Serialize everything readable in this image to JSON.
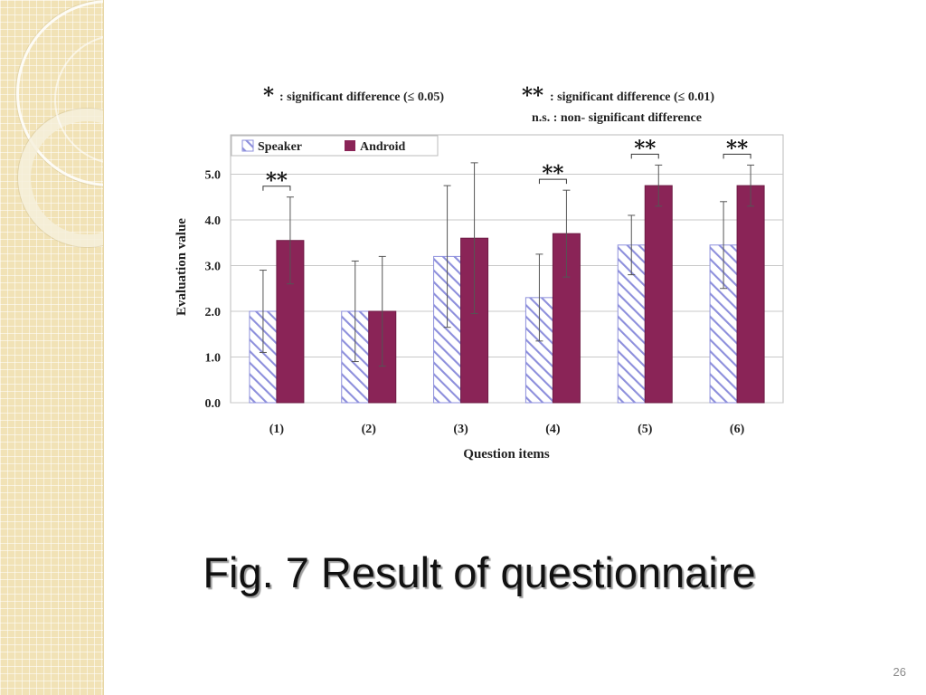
{
  "slide": {
    "title": "Fig. 7 Result of questionnaire",
    "number": "26"
  },
  "colors": {
    "speaker_stripe": "#8d8fdc",
    "android": "#8a2457",
    "band": "#f1e2b6"
  },
  "chart_data": {
    "type": "bar",
    "notes": [
      {
        "mark": "*",
        "text": ": significant difference (≤ 0.05)"
      },
      {
        "mark": "**",
        "text": ": significant difference (≤ 0.01)"
      },
      {
        "mark": "",
        "text": "n.s. : non- significant difference"
      }
    ],
    "xlabel": "Question items",
    "ylabel": "Evaluation value",
    "ylim": [
      0,
      5
    ],
    "yticks": [
      "0.0",
      "1.0",
      "2.0",
      "3.0",
      "4.0",
      "5.0"
    ],
    "categories": [
      "(1)",
      "(2)",
      "(3)",
      "(4)",
      "(5)",
      "(6)"
    ],
    "series": [
      {
        "name": "Speaker",
        "values": [
          2.0,
          2.0,
          3.2,
          2.3,
          3.45,
          3.45
        ],
        "err": [
          0.9,
          1.1,
          1.55,
          0.95,
          0.65,
          0.95
        ]
      },
      {
        "name": "Android",
        "values": [
          3.55,
          2.0,
          3.6,
          3.7,
          4.75,
          4.75
        ],
        "err": [
          0.95,
          1.2,
          1.65,
          0.95,
          0.45,
          0.45
        ]
      }
    ],
    "significance": [
      "**",
      "",
      "",
      "**",
      "**",
      "**"
    ],
    "grid": true,
    "legend": "top-left"
  }
}
